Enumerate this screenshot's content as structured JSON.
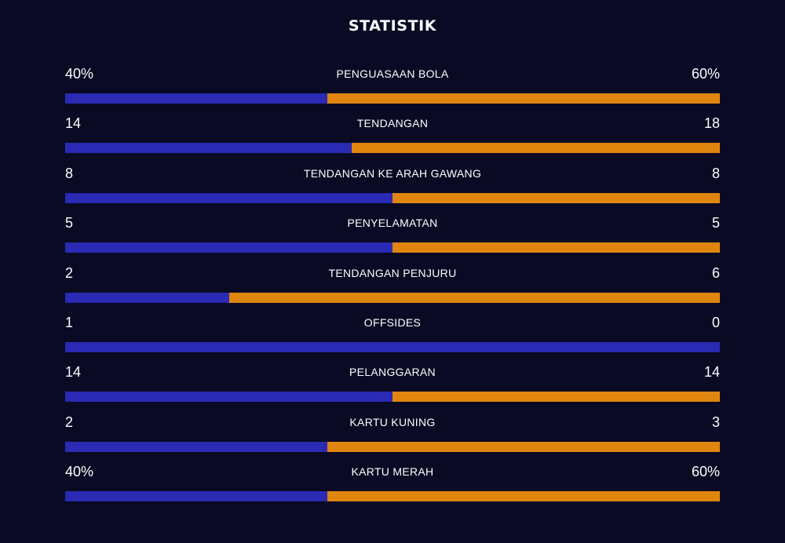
{
  "panel": {
    "title": "STATISTIK"
  },
  "colors": {
    "background": "#0a0a24",
    "home": "#2a2ab4",
    "away": "#e0860f",
    "text": "#ffffff"
  },
  "stats": [
    {
      "label": "PENGUASAAN BOLA",
      "home": "40%",
      "away": "60%",
      "home_share": 0.4
    },
    {
      "label": "TENDANGAN",
      "home": "14",
      "away": "18",
      "home_share": 0.4375
    },
    {
      "label": "TENDANGAN KE ARAH GAWANG",
      "home": "8",
      "away": "8",
      "home_share": 0.5
    },
    {
      "label": "PENYELAMATAN",
      "home": "5",
      "away": "5",
      "home_share": 0.5
    },
    {
      "label": "TENDANGAN PENJURU",
      "home": "2",
      "away": "6",
      "home_share": 0.25
    },
    {
      "label": "OFFSIDES",
      "home": "1",
      "away": "0",
      "home_share": 1.0
    },
    {
      "label": "PELANGGARAN",
      "home": "14",
      "away": "14",
      "home_share": 0.5
    },
    {
      "label": "KARTU KUNING",
      "home": "2",
      "away": "3",
      "home_share": 0.4
    },
    {
      "label": "KARTU MERAH",
      "home": "40%",
      "away": "60%",
      "home_share": 0.4
    }
  ]
}
